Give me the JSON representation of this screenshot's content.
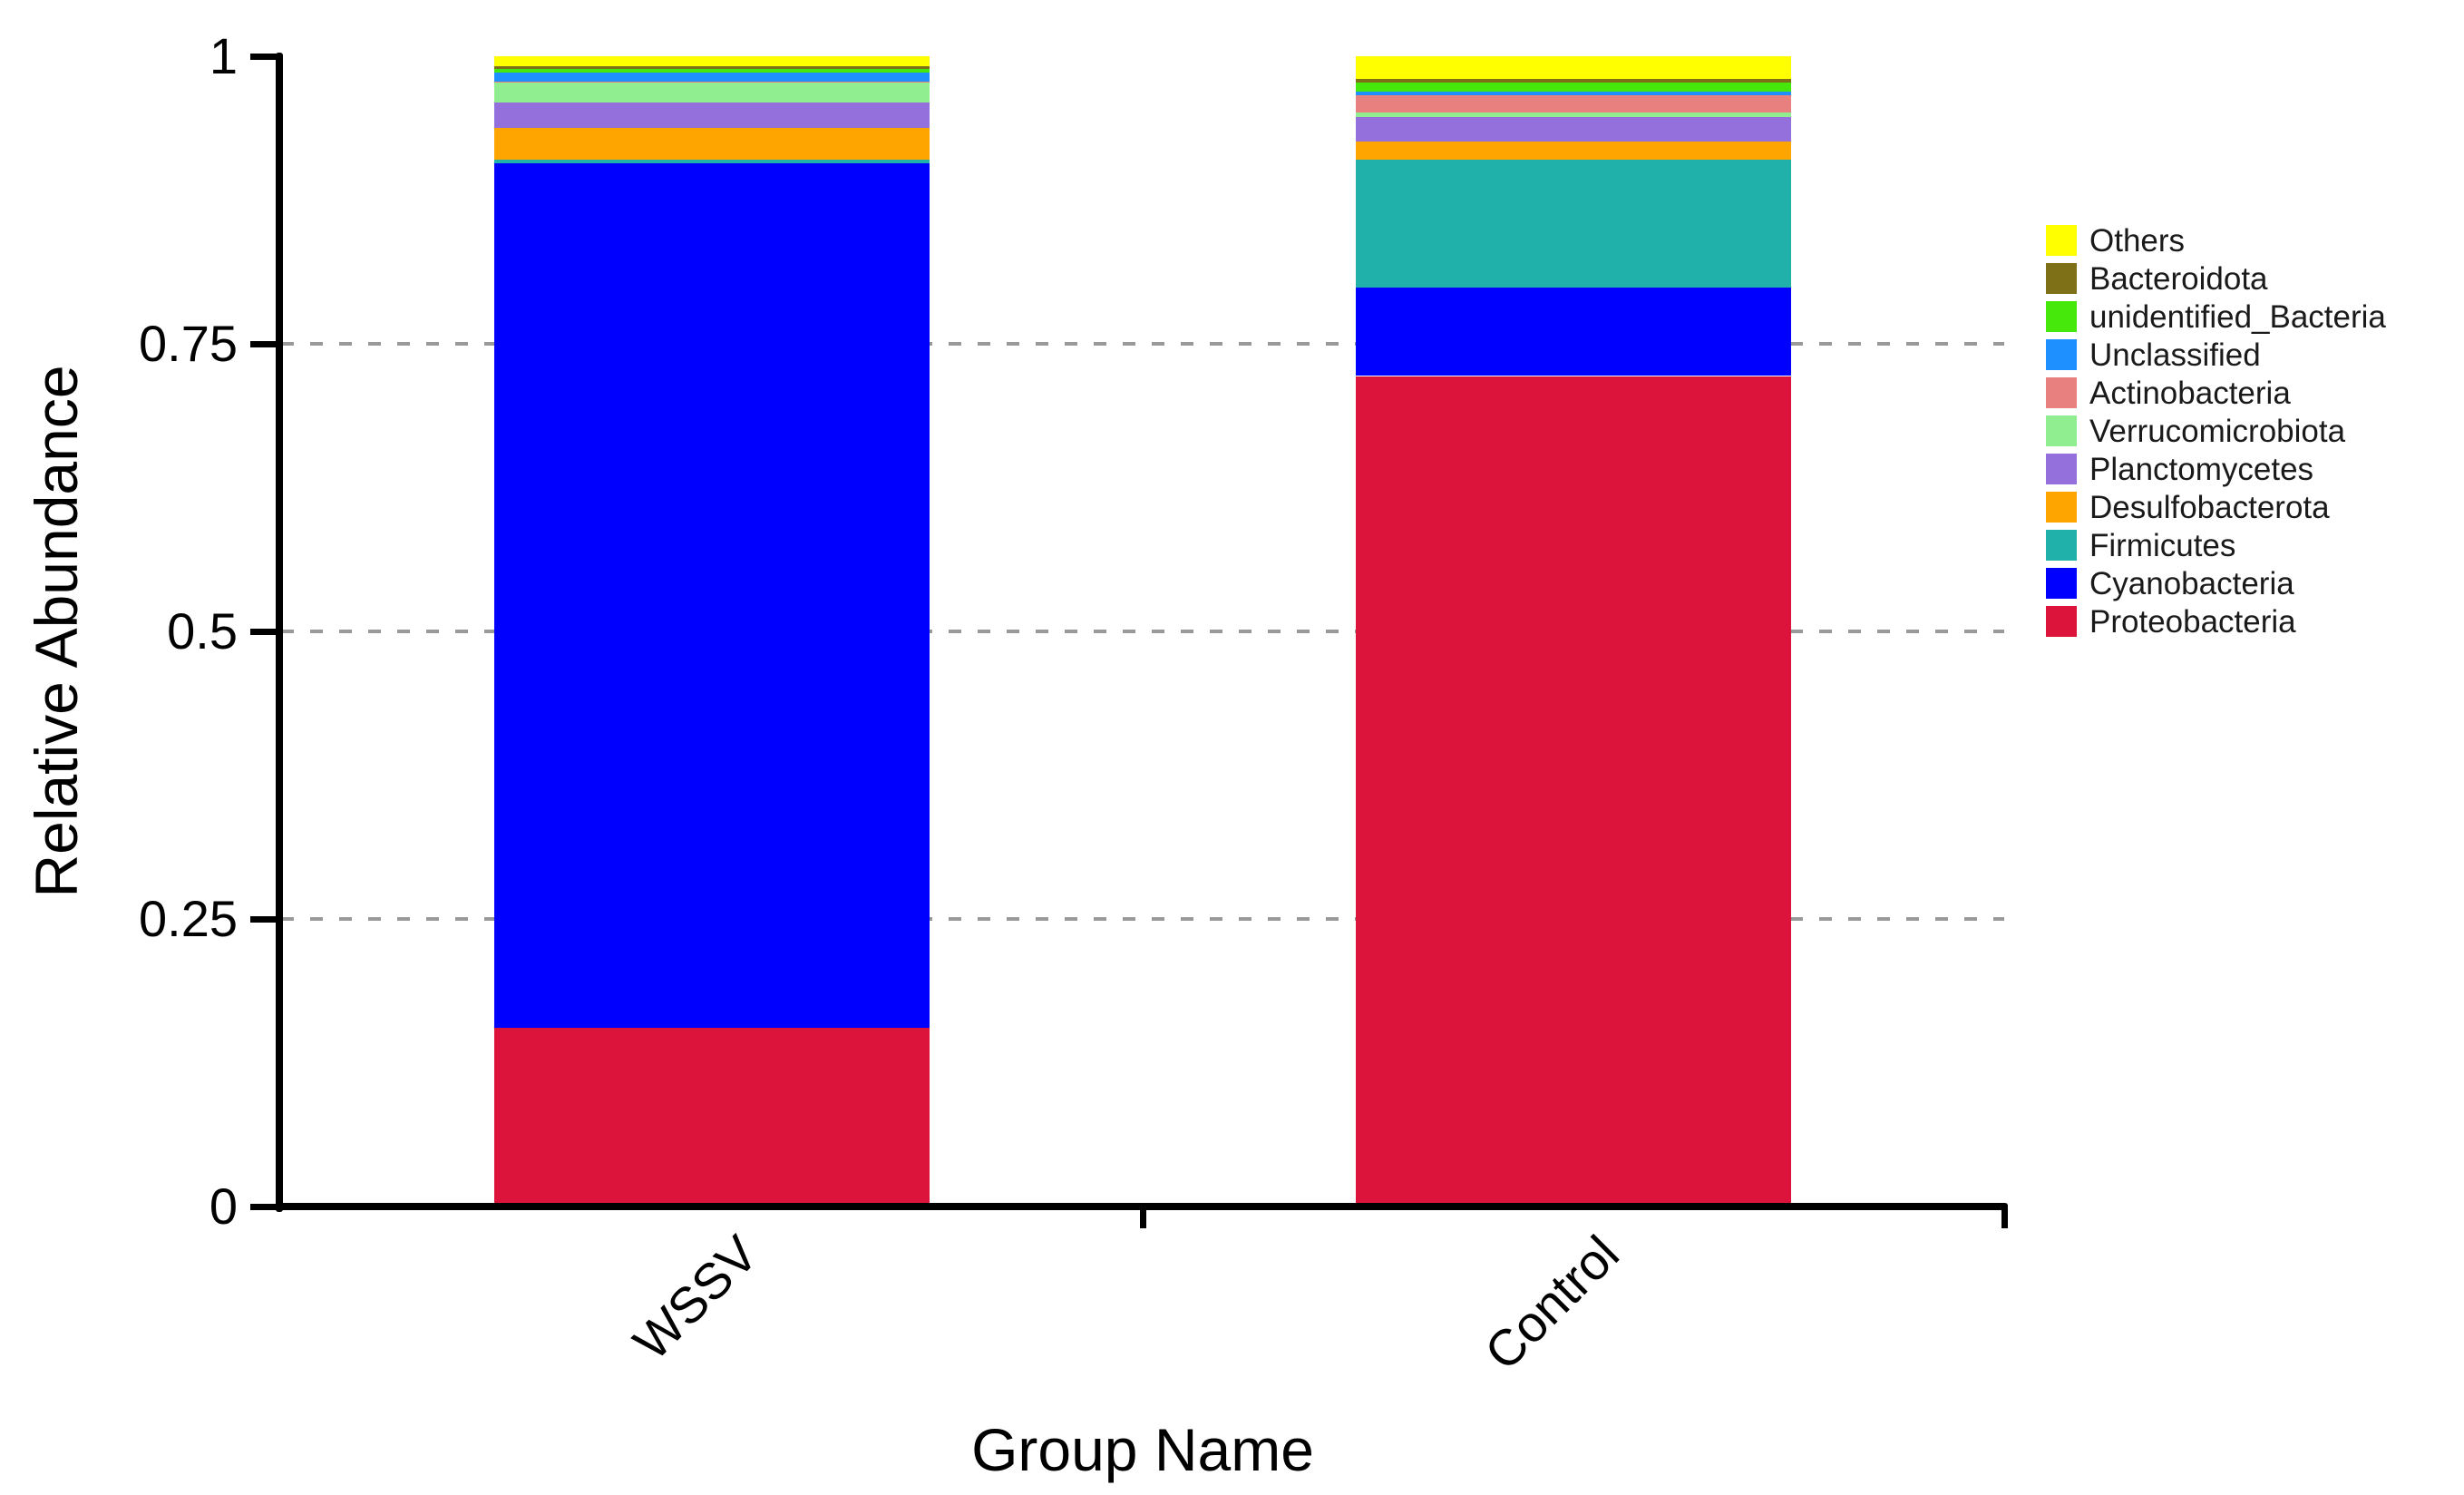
{
  "chart_data": {
    "type": "bar",
    "stacked": true,
    "title": "",
    "xlabel": "Group Name",
    "ylabel": "Relative Abundance",
    "categories": [
      "WSSV",
      "Control"
    ],
    "ylim": [
      0,
      1
    ],
    "y_ticks": [
      {
        "value": 0,
        "label": "0"
      },
      {
        "value": 0.25,
        "label": "0.25"
      },
      {
        "value": 0.5,
        "label": "0.5"
      },
      {
        "value": 0.75,
        "label": "0.75"
      },
      {
        "value": 1,
        "label": "1"
      }
    ],
    "gridlines": {
      "style": "dashed",
      "color": "#999999",
      "at": [
        0.25,
        0.5,
        0.75
      ]
    },
    "legend_position": "right",
    "legend_order_top_to_bottom": [
      "Others",
      "Bacteroidota",
      "unidentified_Bacteria",
      "Unclassified",
      "Actinobacteria",
      "Verrucomicrobiota",
      "Planctomycetes",
      "Desulfobacterota",
      "Firmicutes",
      "Cyanobacteria",
      "Proteobacteria"
    ],
    "series": [
      {
        "name": "Proteobacteria",
        "color": "#DC143C",
        "values": [
          0.155,
          0.722
        ]
      },
      {
        "name": "Cyanobacteria",
        "color": "#0000FF",
        "values": [
          0.752,
          0.077
        ]
      },
      {
        "name": "Firmicutes",
        "color": "#20B2AA",
        "values": [
          0.003,
          0.111
        ]
      },
      {
        "name": "Desulfobacterota",
        "color": "#FFA500",
        "values": [
          0.028,
          0.016
        ]
      },
      {
        "name": "Planctomycetes",
        "color": "#9370DB",
        "values": [
          0.022,
          0.021
        ]
      },
      {
        "name": "Verrucomicrobiota",
        "color": "#90EE90",
        "values": [
          0.017,
          0.004
        ]
      },
      {
        "name": "Actinobacteria",
        "color": "#E88080",
        "values": [
          0.001,
          0.015
        ]
      },
      {
        "name": "Unclassified",
        "color": "#1E90FF",
        "values": [
          0.008,
          0.003
        ]
      },
      {
        "name": "unidentified_Bacteria",
        "color": "#46E80C",
        "values": [
          0.003,
          0.008
        ]
      },
      {
        "name": "Bacteroidota",
        "color": "#7D7017",
        "values": [
          0.002,
          0.003
        ]
      },
      {
        "name": "Others",
        "color": "#FFFF00",
        "values": [
          0.009,
          0.02
        ]
      }
    ],
    "axis_color": "#000000"
  }
}
